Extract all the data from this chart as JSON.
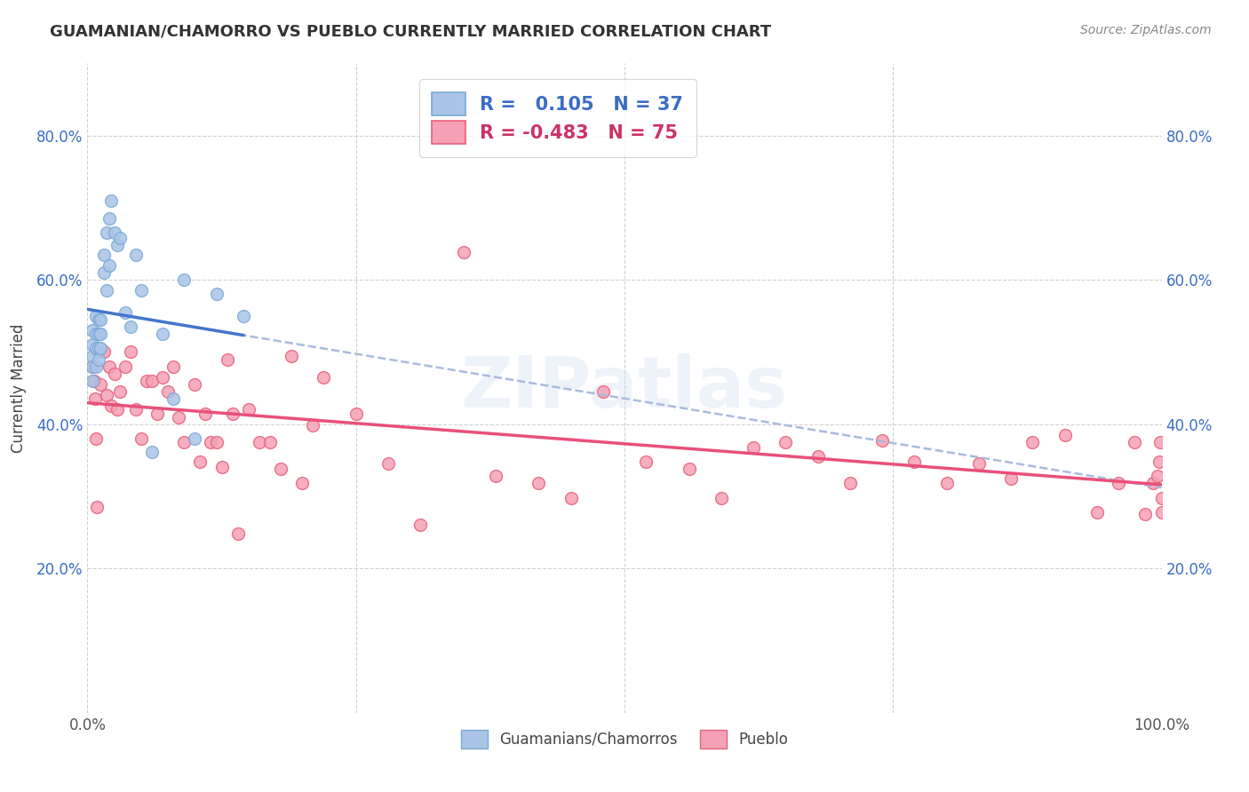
{
  "title": "GUAMANIAN/CHAMORRO VS PUEBLO CURRENTLY MARRIED CORRELATION CHART",
  "source": "Source: ZipAtlas.com",
  "ylabel": "Currently Married",
  "xlabel": "",
  "xlim": [
    0,
    1.0
  ],
  "ylim": [
    0,
    0.9
  ],
  "xticks": [
    0.0,
    0.25,
    0.5,
    0.75,
    1.0
  ],
  "yticks": [
    0.0,
    0.2,
    0.4,
    0.6,
    0.8
  ],
  "xtick_labels_show": [
    "0.0%",
    "100.0%"
  ],
  "ytick_labels": [
    "",
    "20.0%",
    "40.0%",
    "60.0%",
    "80.0%"
  ],
  "background_color": "#ffffff",
  "watermark": "ZIPatlas",
  "color_blue_fill": "#aac4e8",
  "color_blue_edge": "#7aaad4",
  "color_pink_fill": "#f5a0b5",
  "color_pink_edge": "#e8607a",
  "color_blue_line": "#4477cc",
  "color_blue_dash": "#aabbdd",
  "color_pink_line": "#e8507a",
  "guamanian_x": [
    0.005,
    0.005,
    0.005,
    0.005,
    0.005,
    0.008,
    0.008,
    0.008,
    0.008,
    0.01,
    0.01,
    0.01,
    0.01,
    0.012,
    0.012,
    0.012,
    0.015,
    0.015,
    0.018,
    0.018,
    0.02,
    0.02,
    0.022,
    0.025,
    0.028,
    0.03,
    0.035,
    0.04,
    0.045,
    0.05,
    0.06,
    0.07,
    0.08,
    0.09,
    0.1,
    0.12,
    0.145
  ],
  "guamanian_y": [
    0.53,
    0.51,
    0.495,
    0.48,
    0.46,
    0.55,
    0.525,
    0.505,
    0.48,
    0.545,
    0.525,
    0.505,
    0.49,
    0.545,
    0.525,
    0.505,
    0.635,
    0.61,
    0.665,
    0.585,
    0.685,
    0.62,
    0.71,
    0.665,
    0.648,
    0.658,
    0.555,
    0.535,
    0.635,
    0.585,
    0.362,
    0.525,
    0.435,
    0.6,
    0.38,
    0.58,
    0.55
  ],
  "pueblo_x": [
    0.005,
    0.006,
    0.007,
    0.008,
    0.009,
    0.01,
    0.012,
    0.015,
    0.018,
    0.02,
    0.022,
    0.025,
    0.028,
    0.03,
    0.035,
    0.04,
    0.045,
    0.05,
    0.055,
    0.06,
    0.065,
    0.07,
    0.075,
    0.08,
    0.085,
    0.09,
    0.1,
    0.105,
    0.11,
    0.115,
    0.12,
    0.125,
    0.13,
    0.135,
    0.14,
    0.15,
    0.16,
    0.17,
    0.18,
    0.19,
    0.2,
    0.21,
    0.22,
    0.25,
    0.28,
    0.31,
    0.35,
    0.38,
    0.42,
    0.45,
    0.48,
    0.52,
    0.56,
    0.59,
    0.62,
    0.65,
    0.68,
    0.71,
    0.74,
    0.77,
    0.8,
    0.83,
    0.86,
    0.88,
    0.91,
    0.94,
    0.96,
    0.975,
    0.985,
    0.992,
    0.996,
    0.998,
    0.999,
    1.0,
    1.0
  ],
  "pueblo_y": [
    0.48,
    0.46,
    0.435,
    0.38,
    0.285,
    0.5,
    0.455,
    0.5,
    0.44,
    0.48,
    0.425,
    0.47,
    0.42,
    0.445,
    0.48,
    0.5,
    0.42,
    0.38,
    0.46,
    0.46,
    0.415,
    0.465,
    0.445,
    0.48,
    0.41,
    0.375,
    0.455,
    0.348,
    0.415,
    0.375,
    0.375,
    0.34,
    0.49,
    0.415,
    0.248,
    0.42,
    0.375,
    0.375,
    0.338,
    0.495,
    0.318,
    0.398,
    0.465,
    0.415,
    0.345,
    0.26,
    0.638,
    0.328,
    0.318,
    0.298,
    0.445,
    0.348,
    0.338,
    0.298,
    0.368,
    0.375,
    0.355,
    0.318,
    0.378,
    0.348,
    0.318,
    0.345,
    0.325,
    0.375,
    0.385,
    0.278,
    0.318,
    0.375,
    0.275,
    0.318,
    0.328,
    0.348,
    0.375,
    0.278,
    0.298
  ],
  "R_guamanian": 0.105,
  "N_guamanian": 37,
  "R_pueblo": -0.483,
  "N_pueblo": 75
}
